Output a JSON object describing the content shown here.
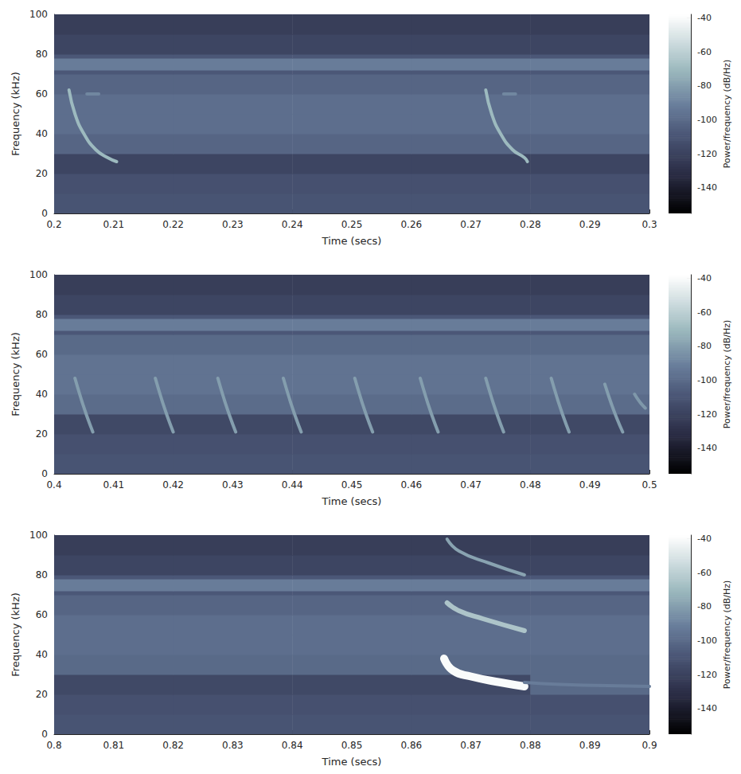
{
  "chart_data": [
    {
      "type": "heatmap",
      "xlabel": "Time (secs)",
      "ylabel": "Frequency (kHz)",
      "xlim": [
        0.2,
        0.3
      ],
      "xticks": [
        0.2,
        0.21,
        0.22,
        0.23,
        0.24,
        0.25,
        0.26,
        0.27,
        0.28,
        0.29,
        0.3
      ],
      "ylim": [
        0,
        100
      ],
      "yticks": [
        0,
        20,
        40,
        60,
        80,
        100
      ],
      "time_edges": [
        0.2,
        0.22,
        0.24,
        0.26,
        0.28,
        0.3
      ],
      "freq_edges": [
        0,
        10,
        20,
        30,
        40,
        50,
        60,
        70,
        72,
        78,
        80,
        90,
        100
      ],
      "power": [
        [
          -110,
          -110,
          -110,
          -110,
          -110
        ],
        [
          -112,
          -112,
          -112,
          -112,
          -112
        ],
        [
          -118,
          -118,
          -118,
          -118,
          -118
        ],
        [
          -102,
          -102,
          -102,
          -102,
          -102
        ],
        [
          -98,
          -98,
          -98,
          -98,
          -98
        ],
        [
          -98,
          -98,
          -98,
          -98,
          -98
        ],
        [
          -102,
          -102,
          -102,
          -102,
          -102
        ],
        [
          -108,
          -108,
          -108,
          -108,
          -108
        ],
        [
          -92,
          -92,
          -92,
          -92,
          -92
        ],
        [
          -108,
          -108,
          -108,
          -108,
          -108
        ],
        [
          -118,
          -118,
          -118,
          -118,
          -118
        ],
        [
          -122,
          -122,
          -122,
          -122,
          -122
        ]
      ],
      "calls": [
        {
          "points": [
            [
              0.2025,
              62
            ],
            [
              0.2035,
              50
            ],
            [
              0.205,
              40
            ],
            [
              0.207,
              32
            ],
            [
              0.209,
              28
            ],
            [
              0.2105,
              26
            ]
          ],
          "power": -70
        },
        {
          "points": [
            [
              0.2055,
              60
            ],
            [
              0.2075,
              60
            ]
          ],
          "power": -88
        },
        {
          "points": [
            [
              0.2725,
              62
            ],
            [
              0.2735,
              50
            ],
            [
              0.275,
              40
            ],
            [
              0.277,
              32
            ],
            [
              0.279,
              28
            ],
            [
              0.2795,
              26
            ]
          ],
          "power": -70
        },
        {
          "points": [
            [
              0.2755,
              60
            ],
            [
              0.2775,
              60
            ]
          ],
          "power": -88
        }
      ],
      "colorbar": {
        "label": "Power/frequency (dB/Hz)",
        "range": [
          -155,
          -38
        ],
        "ticks": [
          -140,
          -120,
          -100,
          -80,
          -60,
          -40
        ]
      }
    },
    {
      "type": "heatmap",
      "xlabel": "Time (secs)",
      "ylabel": "Frequency (kHz)",
      "xlim": [
        0.4,
        0.5
      ],
      "xticks": [
        0.4,
        0.41,
        0.42,
        0.43,
        0.44,
        0.45,
        0.46,
        0.47,
        0.48,
        0.49,
        0.5
      ],
      "ylim": [
        0,
        100
      ],
      "yticks": [
        0,
        20,
        40,
        60,
        80,
        100
      ],
      "time_edges": [
        0.4,
        0.42,
        0.44,
        0.46,
        0.48,
        0.5
      ],
      "freq_edges": [
        0,
        10,
        20,
        30,
        40,
        50,
        60,
        70,
        72,
        78,
        80,
        90,
        100
      ],
      "power": [
        [
          -110,
          -110,
          -110,
          -110,
          -110
        ],
        [
          -112,
          -112,
          -112,
          -112,
          -112
        ],
        [
          -116,
          -116,
          -116,
          -116,
          -116
        ],
        [
          -99,
          -99,
          -99,
          -99,
          -99
        ],
        [
          -96,
          -96,
          -96,
          -96,
          -96
        ],
        [
          -96,
          -96,
          -96,
          -96,
          -96
        ],
        [
          -100,
          -100,
          -100,
          -100,
          -100
        ],
        [
          -108,
          -108,
          -108,
          -108,
          -108
        ],
        [
          -92,
          -92,
          -92,
          -92,
          -92
        ],
        [
          -108,
          -108,
          -108,
          -108,
          -108
        ],
        [
          -118,
          -118,
          -118,
          -118,
          -118
        ],
        [
          -122,
          -122,
          -122,
          -122,
          -122
        ]
      ],
      "calls": [
        {
          "points": [
            [
              0.4035,
              48
            ],
            [
              0.4045,
              38
            ],
            [
              0.4055,
              29
            ],
            [
              0.4065,
              21
            ]
          ],
          "power": -80
        },
        {
          "points": [
            [
              0.417,
              48
            ],
            [
              0.418,
              38
            ],
            [
              0.419,
              29
            ],
            [
              0.42,
              21
            ]
          ],
          "power": -80
        },
        {
          "points": [
            [
              0.4275,
              48
            ],
            [
              0.4285,
              38
            ],
            [
              0.4295,
              29
            ],
            [
              0.4305,
              21
            ]
          ],
          "power": -80
        },
        {
          "points": [
            [
              0.4385,
              48
            ],
            [
              0.4395,
              38
            ],
            [
              0.4405,
              29
            ],
            [
              0.4415,
              21
            ]
          ],
          "power": -80
        },
        {
          "points": [
            [
              0.4505,
              48
            ],
            [
              0.4515,
              38
            ],
            [
              0.4525,
              29
            ],
            [
              0.4535,
              21
            ]
          ],
          "power": -80
        },
        {
          "points": [
            [
              0.4615,
              48
            ],
            [
              0.4625,
              38
            ],
            [
              0.4635,
              29
            ],
            [
              0.4645,
              21
            ]
          ],
          "power": -80
        },
        {
          "points": [
            [
              0.4725,
              48
            ],
            [
              0.4735,
              38
            ],
            [
              0.4745,
              29
            ],
            [
              0.4755,
              21
            ]
          ],
          "power": -80
        },
        {
          "points": [
            [
              0.4835,
              48
            ],
            [
              0.4845,
              38
            ],
            [
              0.4855,
              29
            ],
            [
              0.4865,
              21
            ]
          ],
          "power": -80
        },
        {
          "points": [
            [
              0.4925,
              45
            ],
            [
              0.4935,
              36
            ],
            [
              0.4945,
              28
            ],
            [
              0.4955,
              21
            ]
          ],
          "power": -80
        },
        {
          "points": [
            [
              0.4975,
              40
            ],
            [
              0.4984,
              36
            ],
            [
              0.4993,
              33
            ]
          ],
          "power": -82
        }
      ],
      "colorbar": {
        "label": "Power/frequency (dB/Hz)",
        "range": [
          -155,
          -38
        ],
        "ticks": [
          -140,
          -120,
          -100,
          -80,
          -60,
          -40
        ]
      }
    },
    {
      "type": "heatmap",
      "xlabel": "Time (secs)",
      "ylabel": "Frequency (kHz)",
      "xlim": [
        0.8,
        0.9
      ],
      "xticks": [
        0.8,
        0.81,
        0.82,
        0.83,
        0.84,
        0.85,
        0.86,
        0.87,
        0.88,
        0.89,
        0.9
      ],
      "ylim": [
        0,
        100
      ],
      "yticks": [
        0,
        20,
        40,
        60,
        80,
        100
      ],
      "time_edges": [
        0.8,
        0.82,
        0.84,
        0.86,
        0.88,
        0.9
      ],
      "freq_edges": [
        0,
        10,
        20,
        30,
        40,
        50,
        60,
        70,
        72,
        78,
        80,
        90,
        100
      ],
      "power": [
        [
          -110,
          -110,
          -110,
          -110,
          -110
        ],
        [
          -112,
          -112,
          -112,
          -112,
          -112
        ],
        [
          -116,
          -116,
          -116,
          -116,
          -100
        ],
        [
          -100,
          -100,
          -100,
          -100,
          -100
        ],
        [
          -98,
          -98,
          -98,
          -98,
          -98
        ],
        [
          -98,
          -98,
          -98,
          -98,
          -98
        ],
        [
          -102,
          -102,
          -102,
          -102,
          -102
        ],
        [
          -108,
          -108,
          -108,
          -108,
          -108
        ],
        [
          -92,
          -92,
          -92,
          -92,
          -92
        ],
        [
          -108,
          -108,
          -108,
          -108,
          -108
        ],
        [
          -118,
          -118,
          -118,
          -118,
          -118
        ],
        [
          -122,
          -122,
          -122,
          -122,
          -122
        ]
      ],
      "calls": [
        {
          "points": [
            [
              0.8655,
              38
            ],
            [
              0.867,
              32
            ],
            [
              0.87,
              29
            ],
            [
              0.875,
              26
            ],
            [
              0.879,
              24
            ]
          ],
          "power": -40
        },
        {
          "points": [
            [
              0.866,
              66
            ],
            [
              0.868,
              62
            ],
            [
              0.872,
              58
            ],
            [
              0.879,
              52
            ]
          ],
          "power": -65
        },
        {
          "points": [
            [
              0.866,
              98
            ],
            [
              0.868,
              92
            ],
            [
              0.873,
              86
            ],
            [
              0.879,
              80
            ]
          ],
          "power": -78
        },
        {
          "points": [
            [
              0.879,
              26
            ],
            [
              0.885,
              25
            ],
            [
              0.9,
              24
            ]
          ],
          "power": -92
        }
      ],
      "colorbar": {
        "label": "Power/frequency (dB/Hz)",
        "range": [
          -155,
          -38
        ],
        "ticks": [
          -140,
          -120,
          -100,
          -80,
          -60,
          -40
        ]
      }
    }
  ]
}
